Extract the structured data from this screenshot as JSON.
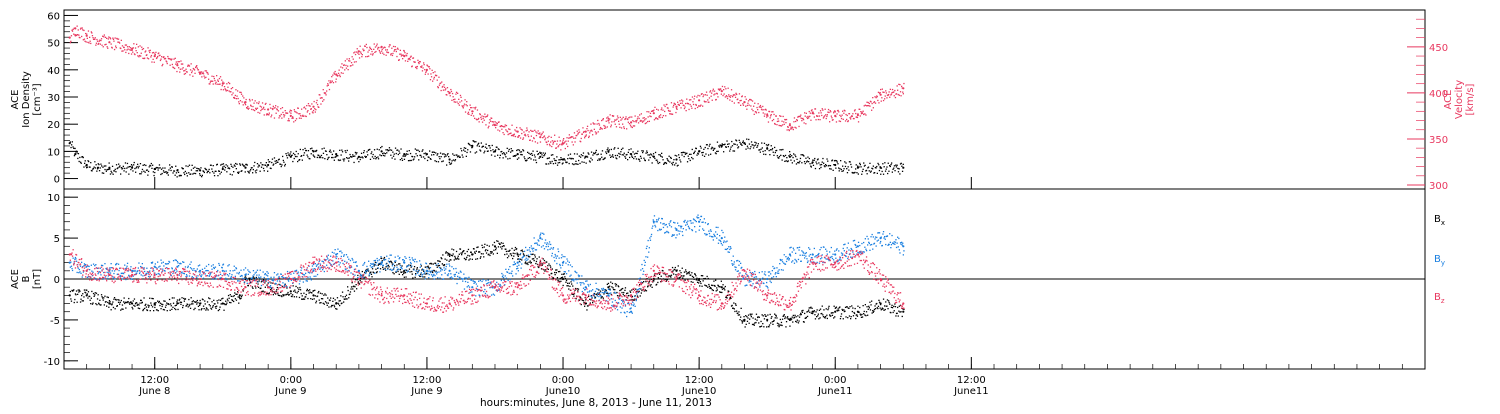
{
  "colors": {
    "density": "#000000",
    "velocity": "#e8385f",
    "bx": "#000000",
    "by": "#1a7fe0",
    "bz": "#e8385f",
    "frame": "#000000"
  },
  "x_axis": {
    "label": "hours:minutes, June  8, 2013 - June 11, 2013",
    "range_hours": [
      4,
      124
    ],
    "ticks": [
      {
        "hour": 12,
        "time": "12:00",
        "day": "June 8"
      },
      {
        "hour": 24,
        "time": "0:00",
        "day": "June 9"
      },
      {
        "hour": 36,
        "time": "12:00",
        "day": "June 9"
      },
      {
        "hour": 48,
        "time": "0:00",
        "day": "June10"
      },
      {
        "hour": 60,
        "time": "12:00",
        "day": "June10"
      },
      {
        "hour": 72,
        "time": "0:00",
        "day": "June11"
      },
      {
        "hour": 84,
        "time": "12:00",
        "day": "June11"
      }
    ]
  },
  "chart_data": [
    {
      "type": "scatter",
      "title": "",
      "xlabel": "hours:minutes, June  8, 2013 - June 11, 2013",
      "ylabel": "ACE Ion Density [cm⁻³]",
      "ylabel_lines": [
        "ACE",
        "Ion Density",
        "[cm⁻³]"
      ],
      "ylim": [
        -2,
        62
      ],
      "yticks": [
        0,
        10,
        20,
        30,
        40,
        50,
        60
      ],
      "y2label": "ACE Velocity [km/s]",
      "y2label_lines": [
        "ACE",
        "Velocity",
        "[km/s]"
      ],
      "y2lim": [
        300,
        490
      ],
      "y2ticks": [
        300,
        350,
        400,
        450
      ],
      "series": [
        {
          "name": "",
          "axis": "left",
          "x_hours": [
            4.5,
            5,
            6,
            7,
            8,
            10,
            12,
            14,
            16,
            18,
            20,
            22,
            24,
            26,
            28,
            30,
            32,
            34,
            36,
            38,
            40,
            42,
            44,
            46,
            48,
            50,
            52,
            54,
            56,
            58,
            60,
            62,
            64,
            66,
            68,
            70,
            72,
            74,
            76,
            78
          ],
          "values": [
            13,
            9,
            5,
            4,
            4,
            4,
            3.5,
            3,
            3,
            3.5,
            4,
            5,
            8,
            10,
            9,
            8,
            10,
            9,
            9,
            7,
            12,
            10,
            9,
            8,
            7,
            8,
            10,
            9,
            8,
            7,
            10,
            12,
            13,
            11,
            8,
            6,
            5,
            4,
            4,
            4
          ]
        },
        {
          "name": "",
          "axis": "right",
          "x_hours": [
            4.5,
            5,
            6,
            8,
            10,
            12,
            14,
            16,
            18,
            20,
            22,
            24,
            26,
            28,
            30,
            32,
            34,
            36,
            38,
            40,
            42,
            44,
            46,
            48,
            50,
            52,
            54,
            56,
            58,
            60,
            62,
            64,
            66,
            68,
            70,
            72,
            74,
            76,
            78
          ],
          "values": [
            460,
            470,
            462,
            455,
            448,
            440,
            430,
            422,
            410,
            390,
            382,
            375,
            385,
            420,
            445,
            450,
            440,
            425,
            400,
            380,
            365,
            358,
            352,
            345,
            358,
            370,
            368,
            378,
            385,
            392,
            402,
            390,
            376,
            365,
            378,
            375,
            376,
            398,
            405
          ]
        }
      ]
    },
    {
      "type": "scatter",
      "title": "",
      "xlabel": "hours:minutes, June  8, 2013 - June 11, 2013",
      "ylabel": "ACE B [nT]",
      "ylabel_lines": [
        "ACE",
        "B",
        "[nT]"
      ],
      "ylim": [
        -11,
        11
      ],
      "yticks": [
        -10,
        -5,
        0,
        5,
        10
      ],
      "legend": [
        {
          "label": "B",
          "sub": "x",
          "color": "#000000"
        },
        {
          "label": "B",
          "sub": "y",
          "color": "#1a7fe0"
        },
        {
          "label": "B",
          "sub": "z",
          "color": "#e8385f"
        }
      ],
      "series": [
        {
          "name": "Bx",
          "x_hours": [
            4.5,
            6,
            8,
            10,
            12,
            14,
            16,
            18,
            19.5,
            20,
            22,
            24,
            26,
            28,
            30,
            32,
            34,
            36,
            38,
            40,
            42,
            44,
            46,
            48,
            50,
            52,
            54,
            56,
            58,
            60,
            62,
            64,
            66,
            68,
            70,
            72,
            74,
            76,
            78
          ],
          "values": [
            -2,
            -2,
            -3,
            -3,
            -3,
            -3,
            -3,
            -3,
            -2,
            0,
            -1,
            -1.5,
            -2,
            -3,
            0,
            2,
            1,
            1,
            3,
            3,
            4,
            3,
            2,
            0,
            -3,
            -1,
            -2,
            0,
            1,
            0,
            -1,
            -5,
            -5,
            -5,
            -4,
            -4,
            -4,
            -3,
            -4
          ]
        },
        {
          "name": "By",
          "x_hours": [
            4.5,
            6,
            8,
            10,
            12,
            14,
            16,
            18,
            20,
            22,
            24,
            26,
            28,
            30,
            32,
            34,
            36,
            38,
            40,
            42,
            44,
            46,
            48,
            50,
            52,
            54,
            56,
            58,
            60,
            62,
            64,
            66,
            68,
            70,
            72,
            74,
            76,
            78
          ],
          "values": [
            2,
            1,
            1,
            1,
            1.5,
            1.5,
            1,
            1,
            0.5,
            0,
            0,
            1,
            3,
            1,
            2,
            2,
            1,
            1,
            -1,
            -1,
            2,
            5,
            2,
            -1,
            -2,
            -4,
            7,
            6,
            7,
            5,
            0,
            0,
            3,
            3,
            3,
            4,
            5,
            4
          ]
        },
        {
          "name": "Bz",
          "x_hours": [
            4.5,
            6,
            8,
            10,
            12,
            14,
            16,
            18,
            20,
            22,
            24,
            26,
            28,
            30,
            32,
            34,
            36,
            38,
            40,
            42,
            44,
            46,
            48,
            50,
            52,
            54,
            56,
            58,
            60,
            62,
            64,
            66,
            68,
            70,
            72,
            74,
            76,
            78
          ],
          "values": [
            3,
            1,
            0.5,
            0.5,
            0.5,
            0.5,
            0,
            0,
            -1,
            -1,
            0,
            2,
            2,
            0,
            -2,
            -2,
            -3,
            -3,
            -2,
            -1,
            -1,
            2,
            -2,
            -2,
            -3,
            -2,
            1,
            0,
            -2,
            -3,
            1,
            -2,
            -3,
            2,
            2,
            3,
            0,
            -3
          ]
        }
      ]
    }
  ]
}
